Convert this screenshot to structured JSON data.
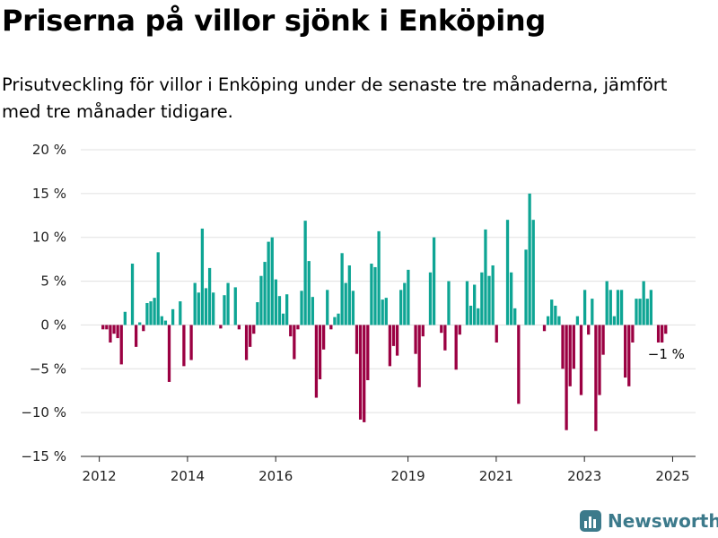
{
  "colors": {
    "positive": "#0ea594",
    "negative": "#9b0042",
    "gridline": "#e0e0e0",
    "axis": "#222222",
    "brand": "#3c7a8b"
  },
  "brand": {
    "name": "Newsworthy",
    "icon": "bar-chart-logo-icon"
  },
  "chart_data": {
    "type": "bar",
    "title": "Priserna på villor sjönk i Enköping",
    "subtitle": "Prisutveckling för villor i Enköping under de senaste tre månaderna, jämfört med tre månader tidigare.",
    "xlabel": "",
    "ylabel": "",
    "ylim": [
      -15,
      20
    ],
    "yticks": [
      -15,
      -10,
      -5,
      0,
      5,
      10,
      15,
      20
    ],
    "ytick_labels": [
      "−15 %",
      "−10 %",
      "−5 %",
      "0 %",
      "5 %",
      "10 %",
      "15 %",
      "20 %"
    ],
    "xticks": [
      2012,
      2014,
      2016,
      2019,
      2021,
      2023,
      2025
    ],
    "xtick_labels": [
      "2012",
      "2014",
      "2016",
      "2019",
      "2021",
      "2023",
      "2025"
    ],
    "xlim": [
      2011.58,
      2025.52
    ],
    "x_start": 2012.0,
    "x_step": 0.0834,
    "grid": true,
    "legend": "none",
    "last_value_label": "−1 %",
    "values": [
      0,
      -0.5,
      -0.5,
      -2,
      -1,
      -1.5,
      -4.5,
      1.5,
      0,
      7,
      -2.5,
      0.3,
      -0.7,
      2.5,
      2.7,
      3.1,
      8.3,
      1,
      0.5,
      -6.5,
      1.8,
      0,
      2.7,
      -4.7,
      0,
      -4,
      4.8,
      3.7,
      11,
      4.2,
      6.5,
      3.7,
      0,
      -0.4,
      3.4,
      4.8,
      0,
      4.3,
      -0.5,
      0,
      -4,
      -2.5,
      -1,
      2.6,
      5.6,
      7.2,
      9.5,
      10,
      5.2,
      3.3,
      1.3,
      3.5,
      -1.3,
      -3.9,
      -0.5,
      3.9,
      11.9,
      7.3,
      3.2,
      -8.3,
      -6.2,
      -2.8,
      4,
      -0.5,
      0.9,
      1.3,
      8.2,
      4.8,
      6.8,
      3.9,
      -3.3,
      -10.8,
      -11.1,
      -6.3,
      7,
      6.6,
      10.7,
      2.9,
      3.1,
      -4.7,
      -2.4,
      -3.5,
      4,
      4.8,
      6.3,
      0,
      -3.3,
      -7.1,
      -1.3,
      0,
      6,
      10,
      0,
      -0.9,
      -2.9,
      5,
      0,
      -5.1,
      -1.1,
      0,
      5,
      2.2,
      4.6,
      1.9,
      6,
      10.9,
      5.6,
      6.8,
      -2,
      0,
      0,
      12,
      6,
      1.9,
      -9,
      0,
      8.6,
      15,
      12,
      0,
      0,
      -0.7,
      1,
      2.9,
      2.2,
      1,
      -5,
      -12,
      -7,
      -5,
      1,
      -8,
      4,
      -1.1,
      3,
      -12.1,
      -8,
      -3.4,
      5,
      4,
      1,
      4,
      4,
      -6,
      -7,
      -2,
      3,
      3,
      5,
      3,
      4,
      0,
      -2,
      -2,
      -1
    ]
  }
}
